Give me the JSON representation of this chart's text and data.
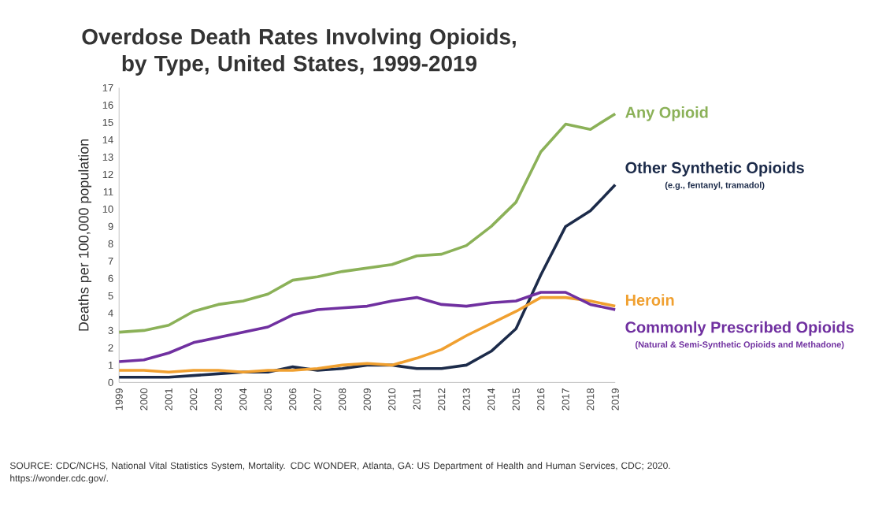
{
  "chart_data": {
    "type": "line",
    "title": "Overdose Death Rates Involving Opioids, by Type, United States, 1999-2019",
    "ylabel": "Deaths per 100,000 population",
    "categories": [
      "1999",
      "2000",
      "2001",
      "2002",
      "2003",
      "2004",
      "2005",
      "2006",
      "2007",
      "2008",
      "2009",
      "2010",
      "2011",
      "2012",
      "2013",
      "2014",
      "2015",
      "2016",
      "2017",
      "2018",
      "2019"
    ],
    "ylim": [
      0,
      17
    ],
    "yticks": [
      0,
      1,
      2,
      3,
      4,
      5,
      6,
      7,
      8,
      9,
      10,
      11,
      12,
      13,
      14,
      15,
      16,
      17
    ],
    "series": [
      {
        "name": "Any Opioid",
        "color": "#8bb158",
        "values": [
          2.9,
          3.0,
          3.3,
          4.1,
          4.5,
          4.7,
          5.1,
          5.9,
          6.1,
          6.4,
          6.6,
          6.8,
          7.3,
          7.4,
          7.9,
          9.0,
          10.4,
          13.3,
          14.9,
          14.6,
          15.5
        ]
      },
      {
        "name": "Other Synthetic Opioids",
        "color": "#1c2b4a",
        "values": [
          0.3,
          0.3,
          0.3,
          0.4,
          0.5,
          0.6,
          0.6,
          0.9,
          0.7,
          0.8,
          1.0,
          1.0,
          0.8,
          0.8,
          1.0,
          1.8,
          3.1,
          6.2,
          9.0,
          9.9,
          11.4
        ]
      },
      {
        "name": "Heroin",
        "color": "#f0a030",
        "values": [
          0.7,
          0.7,
          0.6,
          0.7,
          0.7,
          0.6,
          0.7,
          0.7,
          0.8,
          1.0,
          1.1,
          1.0,
          1.4,
          1.9,
          2.7,
          3.4,
          4.1,
          4.9,
          4.9,
          4.7,
          4.4
        ]
      },
      {
        "name": "Commonly Prescribed Opioids",
        "color": "#7030a0",
        "values": [
          1.2,
          1.3,
          1.7,
          2.3,
          2.6,
          2.9,
          3.2,
          3.9,
          4.2,
          4.3,
          4.4,
          4.7,
          4.9,
          4.5,
          4.4,
          4.6,
          4.7,
          5.2,
          5.2,
          4.5,
          4.2
        ]
      }
    ],
    "annotations": [
      "(e.g., fentanyl, tramadol)",
      "(Natural & Semi-Synthetic Opioids and Methadone)",
      "SOURCE: CDC/NCHS, National Vital Statistics System, Mortality. CDC WONDER, Atlanta, GA: US Department of Health and Human Services, CDC; 2020. https://wonder.cdc.gov/."
    ]
  }
}
